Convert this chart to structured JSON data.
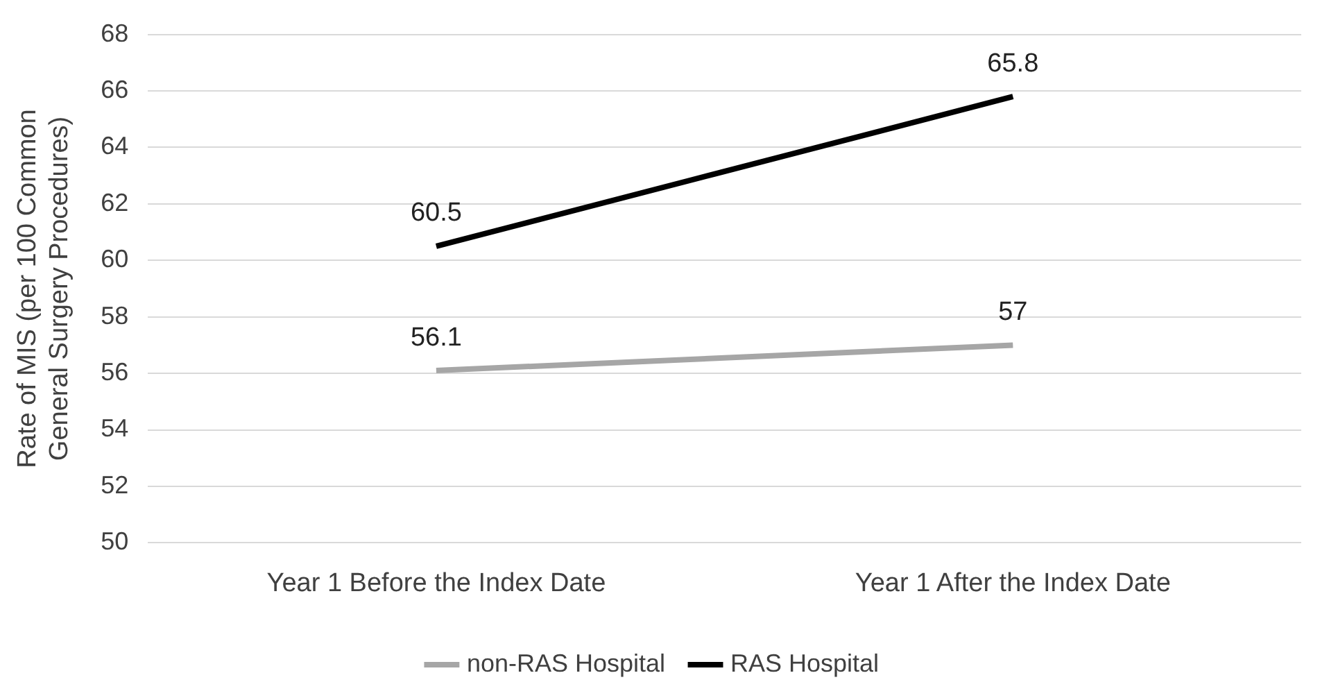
{
  "chart_data": {
    "type": "line",
    "ylabel": "Rate of MIS (per 100 Common General Surgery Procedures)",
    "categories": [
      "Year 1 Before the Index Date",
      "Year 1 After the Index Date"
    ],
    "series": [
      {
        "name": "non-RAS Hospital",
        "color": "#a6a6a6",
        "values": [
          56.1,
          57
        ]
      },
      {
        "name": "RAS Hospital",
        "color": "#000000",
        "values": [
          60.5,
          65.8
        ]
      }
    ],
    "ylim": [
      50,
      68
    ],
    "yticks": [
      50,
      52,
      54,
      56,
      58,
      60,
      62,
      64,
      66,
      68
    ],
    "grid": "y",
    "legend": "bottom",
    "marker": "none",
    "line_style": "solid",
    "data_labels": true
  }
}
